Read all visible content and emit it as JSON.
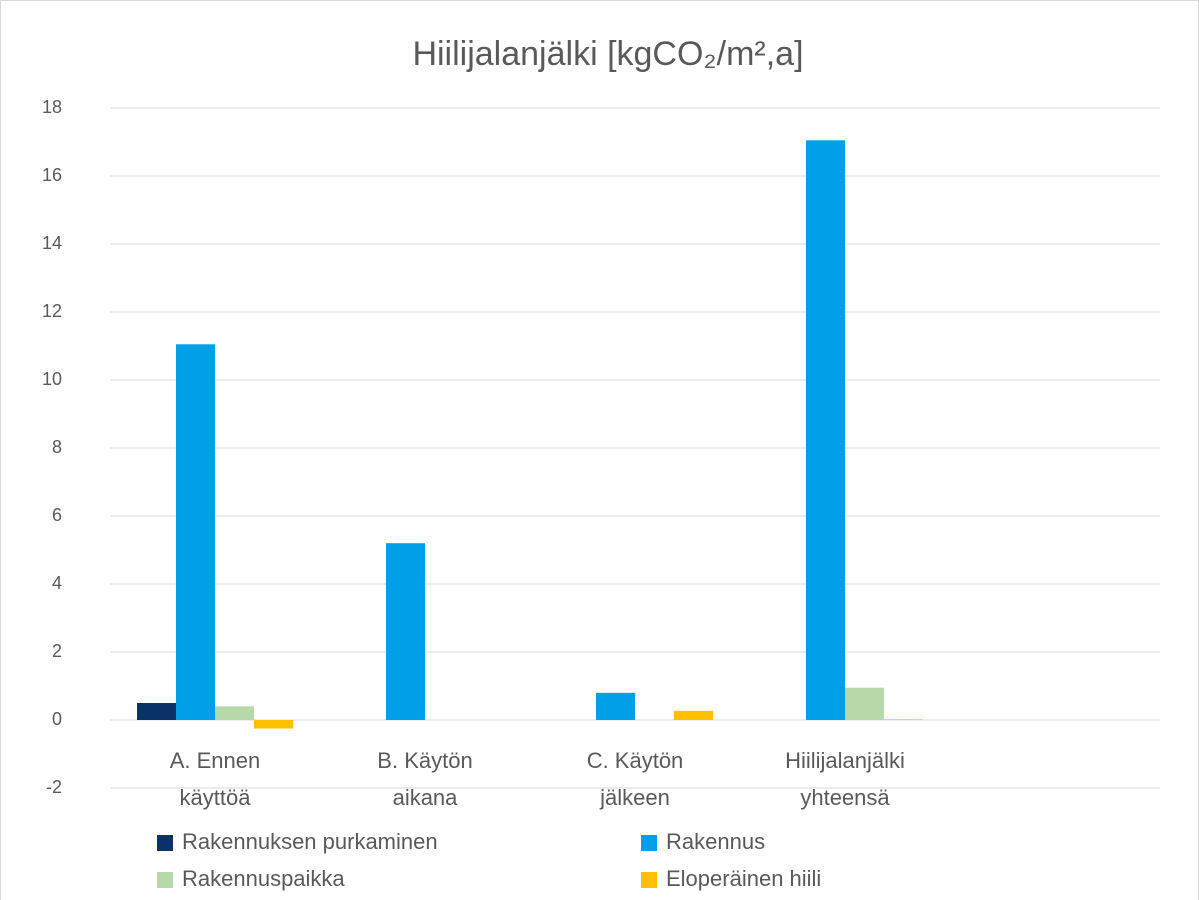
{
  "chart_data": {
    "type": "bar",
    "title": "Hiilijalanjälki [kgCO₂/m²,a]",
    "categories": [
      "A. Ennen käyttöä",
      "B. Käytön aikana",
      "C. Käytön jälkeen",
      "Hiilijalanjälki yhteensä",
      null
    ],
    "series": [
      {
        "name": "Rakennuksen purkaminen",
        "color": "#0a3168",
        "values": [
          0.5,
          0,
          0,
          0,
          null
        ]
      },
      {
        "name": "Rakennus",
        "color": "#009fe8",
        "values": [
          11.05,
          5.2,
          0.8,
          17.05,
          null
        ]
      },
      {
        "name": "Rakennuspaikka",
        "color": "#b5d9a8",
        "values": [
          0.4,
          0,
          0,
          0.95,
          null
        ]
      },
      {
        "name": "Eloperäinen hiili",
        "color": "#ffc000",
        "values": [
          -0.25,
          0,
          0.27,
          0.02,
          null
        ]
      }
    ],
    "ylim": [
      -2,
      18
    ],
    "yticks": [
      -2,
      0,
      2,
      4,
      6,
      8,
      10,
      12,
      14,
      16,
      18
    ],
    "grid": true,
    "legend": "bottom"
  }
}
